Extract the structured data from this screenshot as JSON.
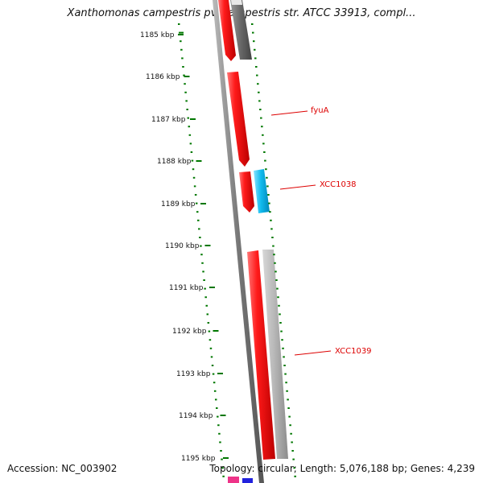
{
  "title": "Xanthomonas campestris pv. campestris str. ATCC 33913, compl...",
  "accession": "Accession: NC_003902",
  "summary": "Topology: circular; Length: 5,076,188 bp; Genes: 4,239",
  "colors": {
    "ruler_ticks": "#007700",
    "forward_gene": "#ee1111",
    "gene_label": "#dd0000",
    "backbone": "#666666",
    "reverse_grey": "#aaaaaa",
    "reverse_dark": "#666666",
    "cyan_gene": "#11bbee",
    "magenta_gene": "#ee3388",
    "blue_gene": "#2222dd"
  },
  "ruler": {
    "unit": "kbp",
    "labels": [
      "1185 kbp",
      "1186 kbp",
      "1187 kbp",
      "1188 kbp",
      "1189 kbp",
      "1190 kbp",
      "1191 kbp",
      "1192 kbp",
      "1193 kbp",
      "1194 kbp",
      "1195 kbp"
    ]
  },
  "genes": [
    {
      "label": "fyuA"
    },
    {
      "label": "XCC1038"
    },
    {
      "label": "XCC1039"
    }
  ]
}
